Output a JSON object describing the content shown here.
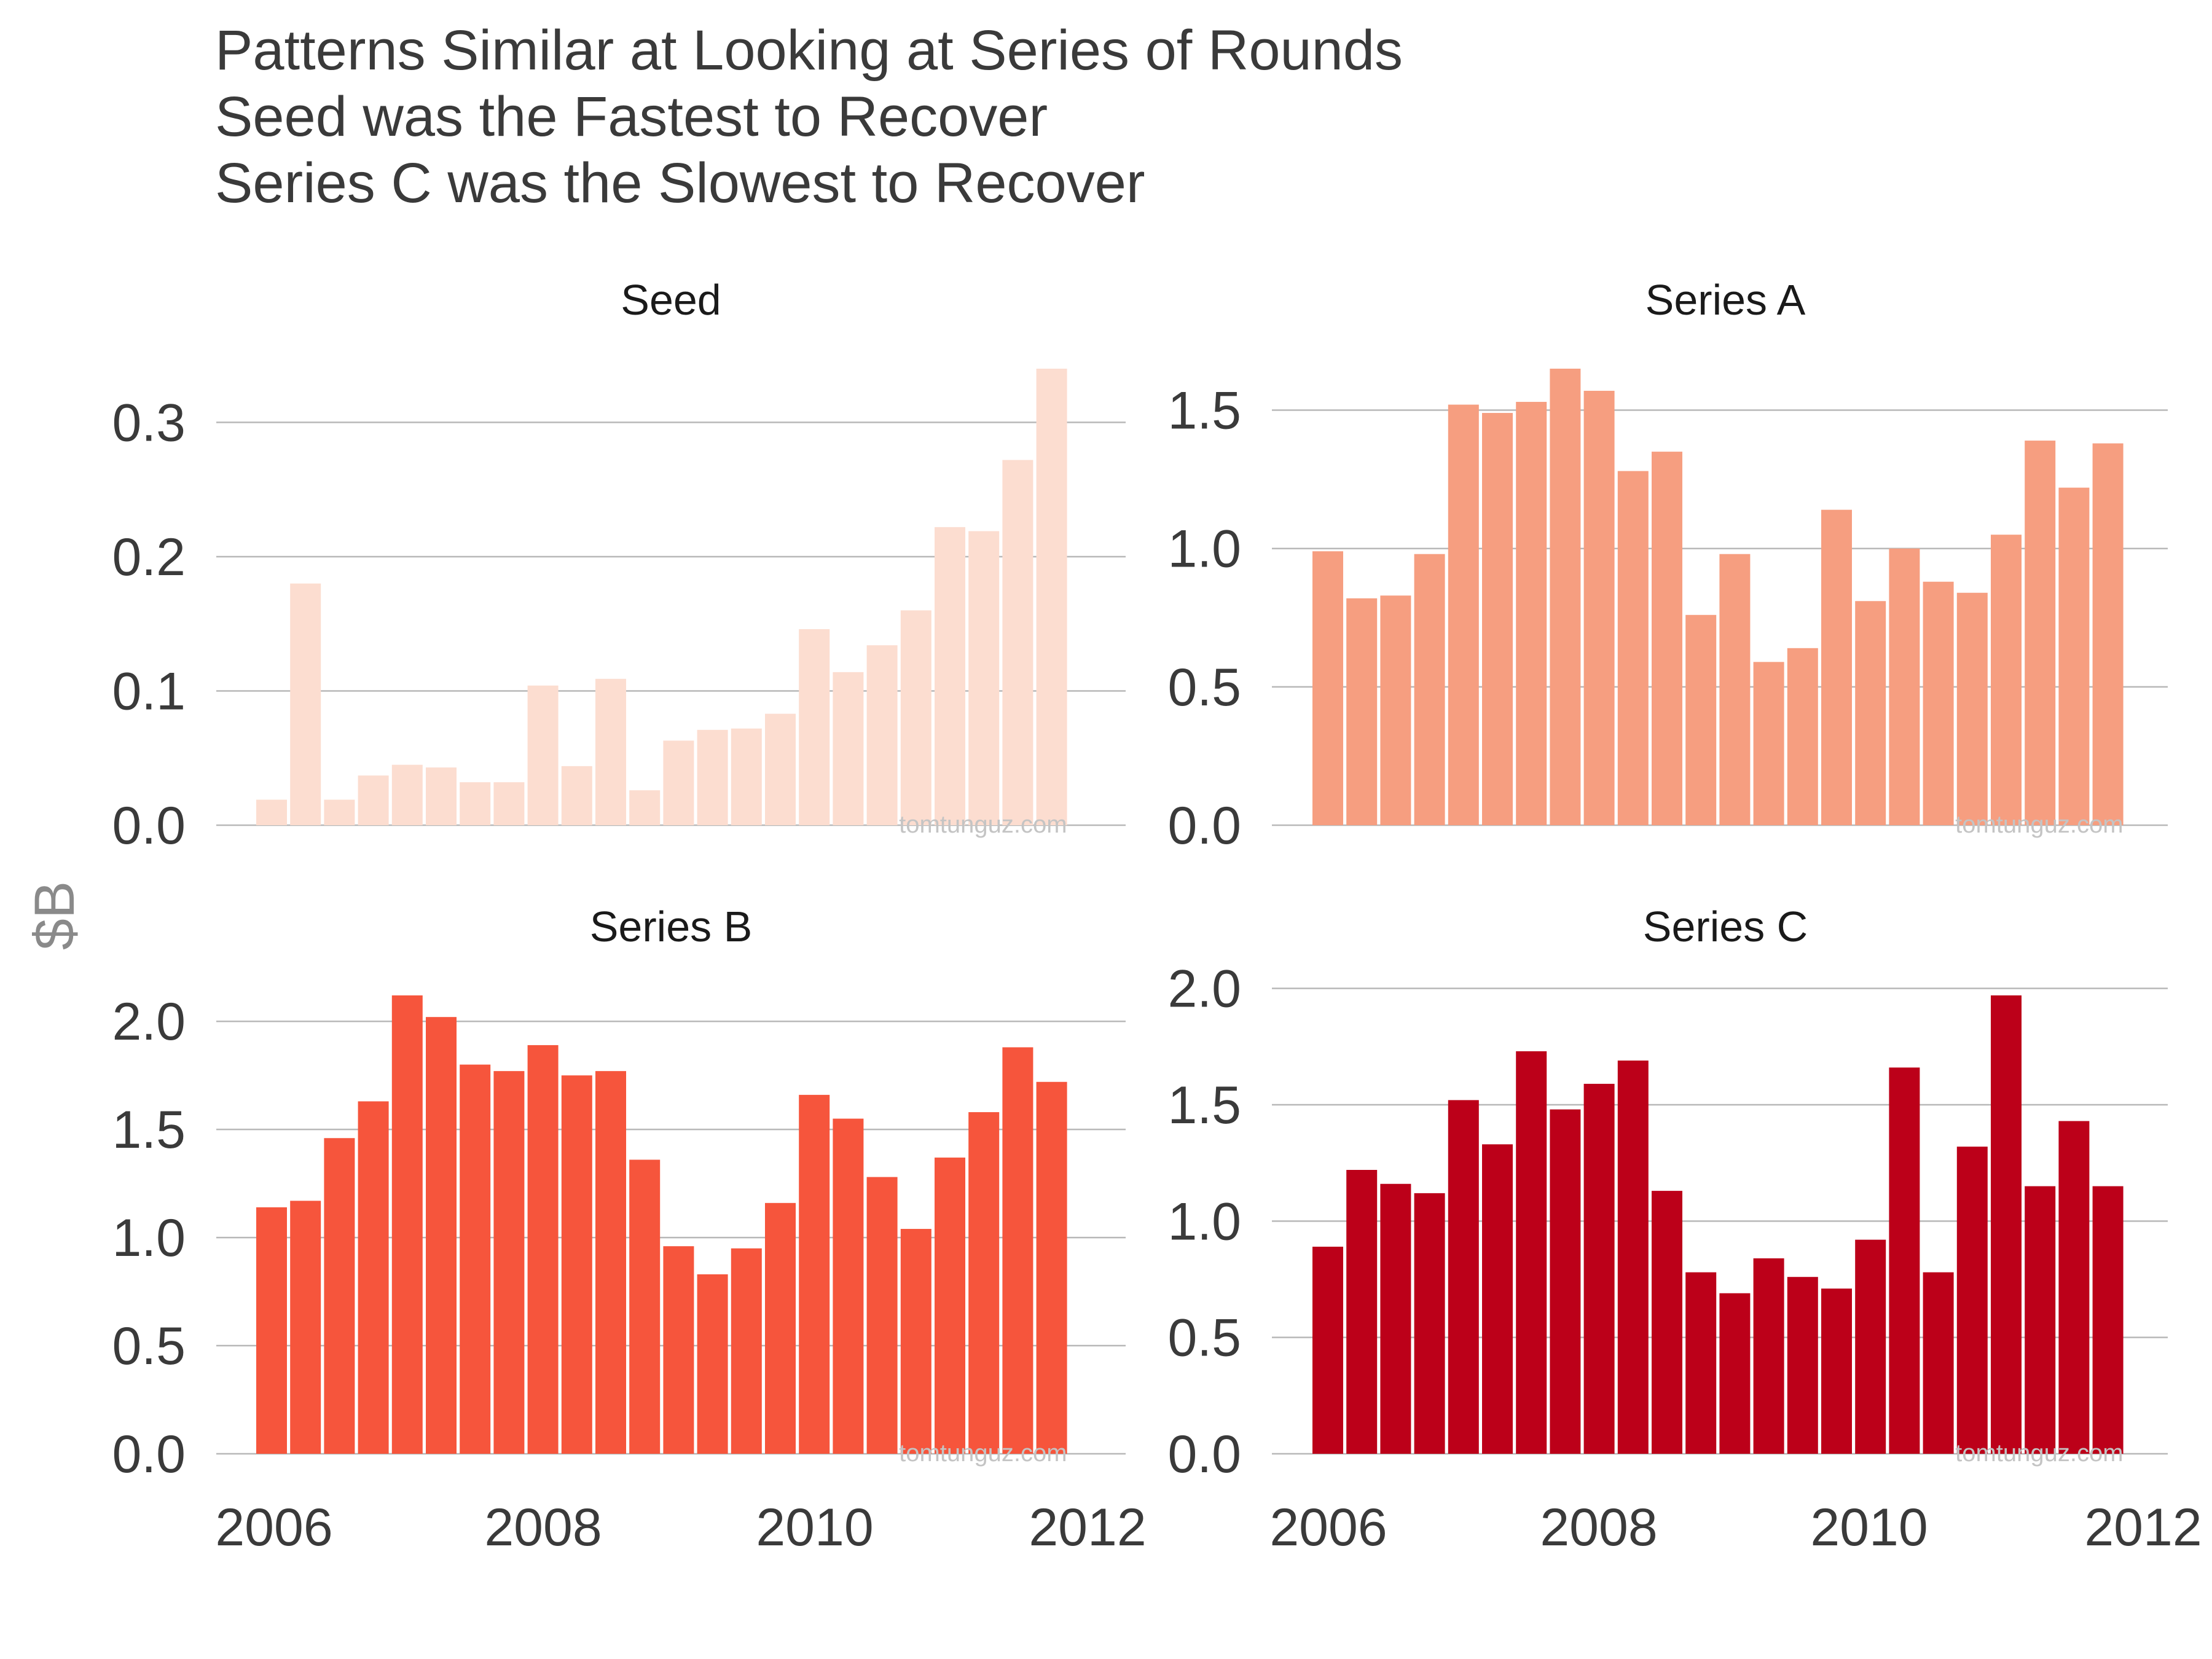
{
  "title_lines": [
    "Patterns Similar at Looking at Series of Rounds",
    "Seed was the Fastest to Recover",
    "Series C was the Slowest to Recover"
  ],
  "ylabel": "$B",
  "watermark": "tomtunguz.com",
  "chart_data": [
    {
      "type": "bar",
      "title": "Seed",
      "color": "#fcddd0",
      "x_ticks": [
        "2006",
        "2008",
        "2010",
        "2012"
      ],
      "y_ticks": [
        "0.0",
        "0.1",
        "0.2",
        "0.3"
      ],
      "ylim": [
        0,
        0.34
      ],
      "values": [
        0.019,
        0.18,
        0.019,
        0.037,
        0.045,
        0.043,
        0.032,
        0.032,
        0.104,
        0.044,
        0.109,
        0.026,
        0.063,
        0.071,
        0.072,
        0.083,
        0.146,
        0.114,
        0.134,
        0.16,
        0.222,
        0.219,
        0.272,
        0.34
      ]
    },
    {
      "type": "bar",
      "title": "Series A",
      "color": "#f69e80",
      "x_ticks": [
        "2006",
        "2008",
        "2010",
        "2012"
      ],
      "y_ticks": [
        "0.0",
        "0.5",
        "1.0",
        "1.5"
      ],
      "ylim": [
        0,
        1.65
      ],
      "values": [
        0.99,
        0.82,
        0.83,
        0.98,
        1.52,
        1.49,
        1.53,
        1.65,
        1.57,
        1.28,
        1.35,
        0.76,
        0.98,
        0.59,
        0.64,
        1.14,
        0.81,
        1.0,
        0.88,
        0.84,
        1.05,
        1.39,
        1.22,
        1.38
      ]
    },
    {
      "type": "bar",
      "title": "Series B",
      "color": "#f6553c",
      "x_ticks": [
        "2006",
        "2008",
        "2010",
        "2012"
      ],
      "y_ticks": [
        "0.0",
        "0.5",
        "1.0",
        "1.5",
        "2.0"
      ],
      "ylim": [
        0,
        2.12
      ],
      "values": [
        1.14,
        1.17,
        1.46,
        1.63,
        2.12,
        2.02,
        1.8,
        1.77,
        1.89,
        1.75,
        1.77,
        1.36,
        0.96,
        0.83,
        0.95,
        1.16,
        1.66,
        1.55,
        1.28,
        1.04,
        1.37,
        1.58,
        1.88,
        1.72
      ]
    },
    {
      "type": "bar",
      "title": "Series C",
      "color": "#bc0019",
      "x_ticks": [
        "2006",
        "2008",
        "2010",
        "2012"
      ],
      "y_ticks": [
        "0.0",
        "0.5",
        "1.0",
        "1.5",
        "2.0"
      ],
      "ylim": [
        0,
        1.97
      ],
      "values": [
        0.89,
        1.22,
        1.16,
        1.12,
        1.52,
        1.33,
        1.73,
        1.48,
        1.59,
        1.69,
        1.13,
        0.78,
        0.69,
        0.84,
        0.76,
        0.71,
        0.92,
        1.66,
        0.78,
        1.32,
        1.97,
        1.15,
        1.43,
        1.15
      ]
    }
  ]
}
